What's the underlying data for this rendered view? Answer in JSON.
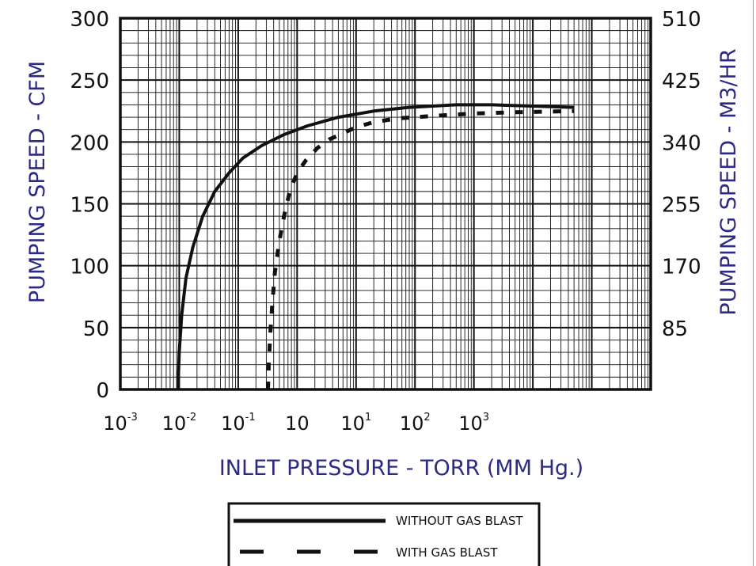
{
  "chart_data": {
    "type": "line",
    "xlabel": "INLET PRESSURE - TORR (MM Hg.)",
    "ylabel": "PUMPING SPEED - CFM",
    "y2label": "PUMPING SPEED - M3/HR",
    "x_scale": "log",
    "xlim": [
      0.001,
      1000000
    ],
    "ylim": [
      0,
      300
    ],
    "grid": true,
    "legend_position": "bottom-center",
    "x_ticks": [
      {
        "base": "10",
        "sup": "-3"
      },
      {
        "base": "10",
        "sup": "-2"
      },
      {
        "base": "10",
        "sup": "-1"
      },
      {
        "base": "10",
        "sup": ""
      },
      {
        "base": "10",
        "sup": "1"
      },
      {
        "base": "10",
        "sup": "2"
      },
      {
        "base": "10",
        "sup": "3"
      }
    ],
    "y_ticks": [
      "0",
      "50",
      "100",
      "150",
      "200",
      "250",
      "300"
    ],
    "y2_ticks": [
      "",
      "85",
      "170",
      "255",
      "340",
      "425",
      "510"
    ],
    "series": [
      {
        "name": "WITHOUT GAS BLAST",
        "style": "solid",
        "x": [
          0.0095,
          0.01,
          0.011,
          0.013,
          0.017,
          0.025,
          0.04,
          0.07,
          0.12,
          0.25,
          0.6,
          1.5,
          5,
          20,
          80,
          200,
          500,
          2000,
          10000,
          50000
        ],
        "y": [
          0,
          30,
          60,
          90,
          115,
          140,
          160,
          175,
          187,
          197,
          206,
          213,
          220,
          225,
          228,
          229,
          230,
          230,
          229,
          228
        ]
      },
      {
        "name": "WITH GAS BLAST",
        "style": "dashed",
        "x": [
          0.32,
          0.33,
          0.35,
          0.38,
          0.42,
          0.5,
          0.6,
          0.75,
          1.0,
          1.4,
          2.2,
          3.5,
          6,
          10,
          20,
          50,
          200,
          1000,
          5000,
          50000
        ],
        "y": [
          0,
          20,
          45,
          70,
          95,
          120,
          140,
          160,
          175,
          185,
          195,
          202,
          207,
          212,
          216,
          219,
          221,
          223,
          224,
          225
        ]
      }
    ]
  },
  "colors": {
    "axis_title": "#2b2a84",
    "grid": "#111111",
    "curve": "#111111"
  }
}
